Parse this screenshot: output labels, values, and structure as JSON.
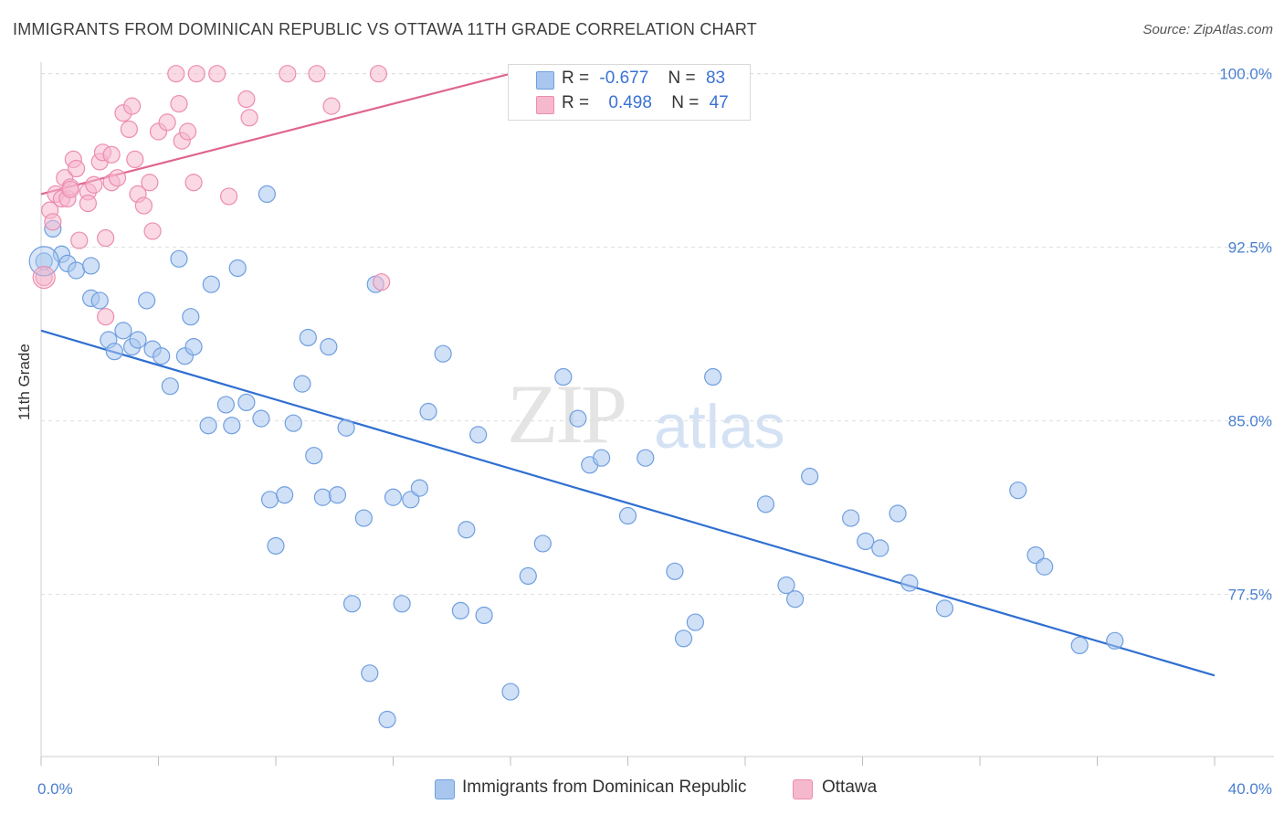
{
  "title": "IMMIGRANTS FROM DOMINICAN REPUBLIC VS OTTAWA 11TH GRADE CORRELATION CHART",
  "source": "Source: ZipAtlas.com",
  "watermark": {
    "zip": "ZIP",
    "atlas": "atlas"
  },
  "colors": {
    "blue_fill": "#a9c7ee",
    "blue_stroke": "#6f9fe0",
    "blue_line": "#2f6fd1",
    "pink_fill": "#f6b8cd",
    "pink_stroke": "#ec8db0",
    "pink_line": "#e0648f",
    "grid": "#dedede",
    "tick_text": "#4a7fd0"
  },
  "legend": {
    "rows": [
      {
        "r_label": "R =",
        "r_value": "-0.677",
        "n_label": "N =",
        "n_value": "83",
        "color": "#a9c7ee"
      },
      {
        "r_label": "R =",
        "r_value": "0.498",
        "n_label": "N =",
        "n_value": "47",
        "color": "#f6b8cd"
      }
    ]
  },
  "bottom_legend": [
    {
      "label": "Immigrants from Dominican Republic",
      "color": "#a9c7ee"
    },
    {
      "label": "Ottawa",
      "color": "#f6b8cd"
    }
  ],
  "chart_data": {
    "type": "scatter",
    "title": "IMMIGRANTS FROM DOMINICAN REPUBLIC VS OTTAWA 11TH GRADE CORRELATION CHART",
    "xlabel": "",
    "ylabel": "11th Grade",
    "xlim": [
      0,
      40
    ],
    "ylim": [
      70.5,
      100.5
    ],
    "x_tick_labels": [
      "0.0%",
      "40.0%"
    ],
    "y_ticks": [
      77.5,
      85.0,
      92.5,
      100.0
    ],
    "y_tick_labels": [
      "77.5%",
      "85.0%",
      "92.5%",
      "100.0%"
    ],
    "grid": true,
    "legend_placement": "top-center",
    "series": [
      {
        "name": "Immigrants from Dominican Republic",
        "color": "#a9c7ee",
        "trend": {
          "x": [
            0,
            40
          ],
          "y": [
            88.9,
            74.0
          ]
        },
        "points": [
          [
            0.1,
            91.9
          ],
          [
            0.4,
            93.3
          ],
          [
            0.7,
            92.2
          ],
          [
            0.9,
            91.8
          ],
          [
            1.2,
            91.5
          ],
          [
            1.7,
            91.7
          ],
          [
            1.7,
            90.3
          ],
          [
            2.0,
            90.2
          ],
          [
            2.3,
            88.5
          ],
          [
            2.5,
            88.0
          ],
          [
            2.8,
            88.9
          ],
          [
            3.1,
            88.2
          ],
          [
            3.3,
            88.5
          ],
          [
            3.6,
            90.2
          ],
          [
            3.8,
            88.1
          ],
          [
            4.1,
            87.8
          ],
          [
            4.4,
            86.5
          ],
          [
            4.7,
            92.0
          ],
          [
            4.9,
            87.8
          ],
          [
            5.2,
            88.2
          ],
          [
            5.1,
            89.5
          ],
          [
            5.7,
            84.8
          ],
          [
            5.8,
            90.9
          ],
          [
            6.3,
            85.7
          ],
          [
            6.5,
            84.8
          ],
          [
            6.7,
            91.6
          ],
          [
            7.0,
            85.8
          ],
          [
            7.5,
            85.1
          ],
          [
            7.7,
            94.8
          ],
          [
            7.8,
            81.6
          ],
          [
            8.0,
            79.6
          ],
          [
            8.3,
            81.8
          ],
          [
            8.6,
            84.9
          ],
          [
            8.9,
            86.6
          ],
          [
            9.1,
            88.6
          ],
          [
            9.3,
            83.5
          ],
          [
            9.6,
            81.7
          ],
          [
            9.8,
            88.2
          ],
          [
            10.1,
            81.8
          ],
          [
            10.4,
            84.7
          ],
          [
            10.6,
            77.1
          ],
          [
            11.0,
            80.8
          ],
          [
            11.2,
            74.1
          ],
          [
            11.4,
            90.9
          ],
          [
            11.8,
            72.1
          ],
          [
            12.0,
            81.7
          ],
          [
            12.3,
            77.1
          ],
          [
            12.6,
            81.6
          ],
          [
            12.9,
            82.1
          ],
          [
            13.2,
            85.4
          ],
          [
            13.7,
            87.9
          ],
          [
            14.3,
            76.8
          ],
          [
            14.5,
            80.3
          ],
          [
            14.9,
            84.4
          ],
          [
            15.1,
            76.6
          ],
          [
            16.0,
            73.3
          ],
          [
            16.6,
            78.3
          ],
          [
            17.1,
            79.7
          ],
          [
            17.8,
            86.9
          ],
          [
            18.3,
            85.1
          ],
          [
            18.7,
            83.1
          ],
          [
            19.1,
            83.4
          ],
          [
            20.0,
            80.9
          ],
          [
            20.6,
            83.4
          ],
          [
            21.6,
            78.5
          ],
          [
            21.9,
            75.6
          ],
          [
            22.3,
            76.3
          ],
          [
            22.9,
            86.9
          ],
          [
            24.7,
            81.4
          ],
          [
            25.4,
            77.9
          ],
          [
            25.7,
            77.3
          ],
          [
            26.2,
            82.6
          ],
          [
            27.6,
            80.8
          ],
          [
            28.1,
            79.8
          ],
          [
            28.6,
            79.5
          ],
          [
            29.2,
            81.0
          ],
          [
            29.6,
            78.0
          ],
          [
            30.8,
            76.9
          ],
          [
            33.3,
            82.0
          ],
          [
            33.9,
            79.2
          ],
          [
            34.2,
            78.7
          ],
          [
            35.4,
            75.3
          ],
          [
            36.6,
            75.5
          ]
        ]
      },
      {
        "name": "Ottawa",
        "color": "#f6b8cd",
        "trend": {
          "x": [
            0,
            16
          ],
          "y": [
            94.8,
            100.0
          ]
        },
        "points": [
          [
            0.1,
            91.2
          ],
          [
            0.3,
            94.1
          ],
          [
            0.4,
            93.6
          ],
          [
            0.5,
            94.8
          ],
          [
            0.7,
            94.6
          ],
          [
            0.8,
            95.5
          ],
          [
            0.9,
            94.6
          ],
          [
            1.0,
            95.1
          ],
          [
            1.0,
            95.0
          ],
          [
            1.1,
            96.3
          ],
          [
            1.2,
            95.9
          ],
          [
            1.3,
            92.8
          ],
          [
            1.6,
            94.9
          ],
          [
            1.6,
            94.4
          ],
          [
            1.8,
            95.2
          ],
          [
            2.0,
            96.2
          ],
          [
            2.1,
            96.6
          ],
          [
            2.2,
            89.5
          ],
          [
            2.2,
            92.9
          ],
          [
            2.4,
            96.5
          ],
          [
            2.4,
            95.3
          ],
          [
            2.6,
            95.5
          ],
          [
            2.8,
            98.3
          ],
          [
            3.0,
            97.6
          ],
          [
            3.1,
            98.6
          ],
          [
            3.2,
            96.3
          ],
          [
            3.3,
            94.8
          ],
          [
            3.5,
            94.3
          ],
          [
            3.7,
            95.3
          ],
          [
            3.8,
            93.2
          ],
          [
            4.0,
            97.5
          ],
          [
            4.3,
            97.9
          ],
          [
            4.6,
            100.0
          ],
          [
            4.7,
            98.7
          ],
          [
            4.8,
            97.1
          ],
          [
            5.0,
            97.5
          ],
          [
            5.2,
            95.3
          ],
          [
            5.3,
            100.0
          ],
          [
            6.0,
            100.0
          ],
          [
            6.4,
            94.7
          ],
          [
            7.0,
            98.9
          ],
          [
            7.1,
            98.1
          ],
          [
            8.4,
            100.0
          ],
          [
            9.4,
            100.0
          ],
          [
            9.9,
            98.6
          ],
          [
            11.5,
            100.0
          ],
          [
            11.6,
            91.0
          ]
        ]
      }
    ]
  }
}
